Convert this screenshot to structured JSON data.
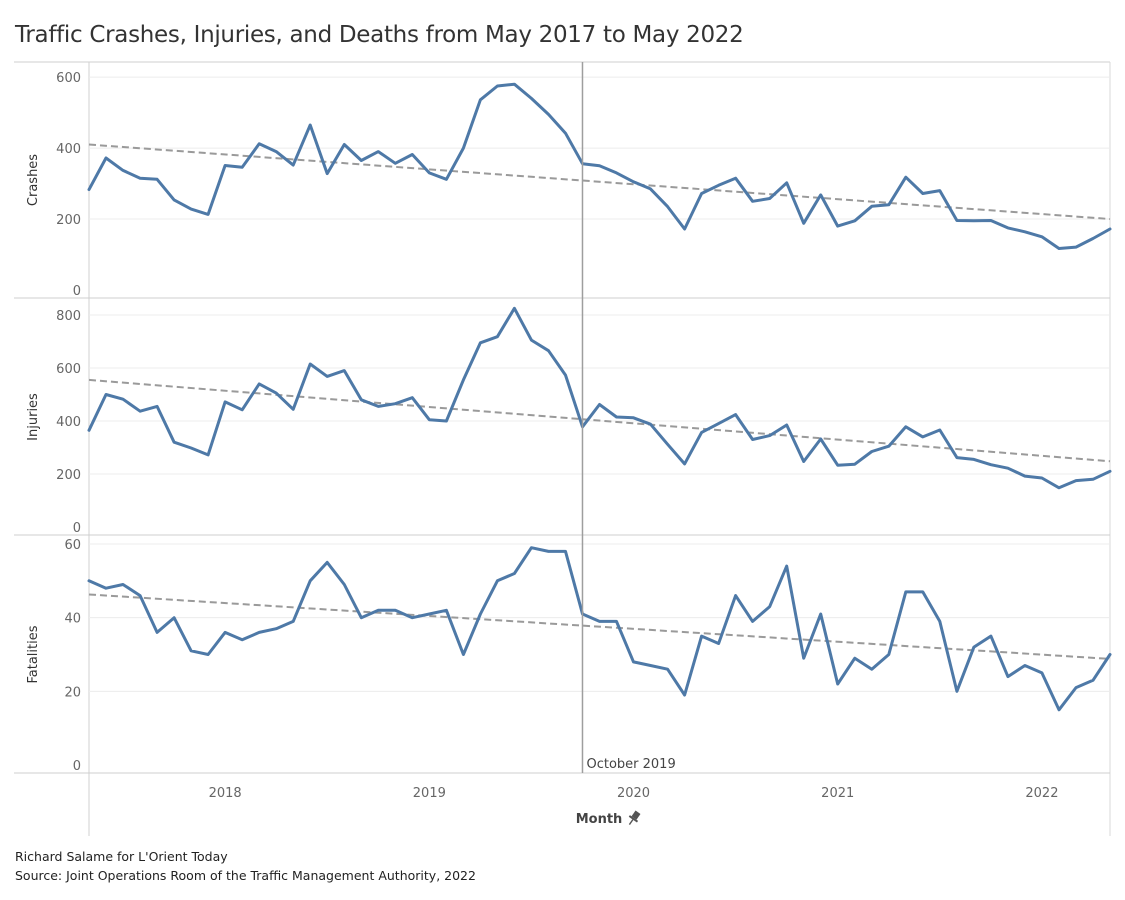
{
  "chart_data": {
    "type": "line",
    "title": "Traffic Crashes, Injuries, and Deaths from May 2017 to May 2022",
    "x_axis": {
      "label": "Month",
      "range": [
        "2017-05",
        "2022-05"
      ],
      "ticks": [
        "2018",
        "2019",
        "2020",
        "2021",
        "2022"
      ]
    },
    "annotation": {
      "date": "2019-10",
      "label": "October 2019"
    },
    "line_color": "#4e79a7",
    "trend_color": "#9a9a9a",
    "months": [
      "2017-05",
      "2017-06",
      "2017-07",
      "2017-08",
      "2017-09",
      "2017-10",
      "2017-11",
      "2017-12",
      "2018-01",
      "2018-02",
      "2018-03",
      "2018-04",
      "2018-05",
      "2018-06",
      "2018-07",
      "2018-08",
      "2018-09",
      "2018-10",
      "2018-11",
      "2018-12",
      "2019-01",
      "2019-02",
      "2019-03",
      "2019-04",
      "2019-05",
      "2019-06",
      "2019-07",
      "2019-08",
      "2019-09",
      "2019-10",
      "2019-11",
      "2019-12",
      "2020-01",
      "2020-02",
      "2020-03",
      "2020-04",
      "2020-05",
      "2020-06",
      "2020-07",
      "2020-08",
      "2020-09",
      "2020-10",
      "2020-11",
      "2020-12",
      "2021-01",
      "2021-02",
      "2021-03",
      "2021-04",
      "2021-05",
      "2021-06",
      "2021-07",
      "2021-08",
      "2021-09",
      "2021-10",
      "2021-11",
      "2021-12",
      "2022-01",
      "2022-02",
      "2022-03",
      "2022-04",
      "2022-05"
    ],
    "panels": [
      {
        "name": "Crashes",
        "ylim": [
          0,
          620
        ],
        "yticks": [
          0,
          200,
          400,
          600
        ],
        "values": [
          283,
          372,
          337,
          315,
          312,
          254,
          228,
          213,
          351,
          346,
          412,
          390,
          352,
          465,
          328,
          410,
          365,
          390,
          357,
          382,
          330,
          312,
          400,
          536,
          575,
          580,
          540,
          495,
          442,
          356,
          350,
          330,
          305,
          285,
          235,
          172,
          272,
          295,
          315,
          250,
          258,
          302,
          188,
          268,
          180,
          195,
          236,
          240,
          318,
          272,
          280,
          196,
          195,
          196,
          175,
          164,
          150,
          117,
          121,
          145,
          172
        ],
        "trend": [
          410,
          200
        ]
      },
      {
        "name": "Injuries",
        "ylim": [
          0,
          830
        ],
        "yticks": [
          0,
          200,
          400,
          600,
          800
        ],
        "values": [
          365,
          500,
          482,
          437,
          455,
          320,
          298,
          272,
          472,
          442,
          540,
          505,
          444,
          615,
          568,
          590,
          480,
          455,
          465,
          488,
          405,
          400,
          555,
          695,
          718,
          825,
          705,
          665,
          573,
          378,
          462,
          415,
          412,
          388,
          312,
          238,
          357,
          390,
          424,
          330,
          345,
          385,
          247,
          332,
          233,
          237,
          285,
          305,
          378,
          340,
          366,
          262,
          255,
          235,
          222,
          192,
          185,
          148,
          175,
          180,
          210
        ],
        "trend": [
          555,
          248
        ]
      },
      {
        "name": "Fatalities",
        "ylim": [
          0,
          60
        ],
        "yticks": [
          0,
          20,
          40,
          60
        ],
        "values": [
          50,
          48,
          49,
          46,
          36,
          40,
          31,
          30,
          36,
          34,
          36,
          37,
          39,
          50,
          55,
          49,
          40,
          42,
          42,
          40,
          41,
          42,
          30,
          41,
          50,
          52,
          59,
          58,
          58,
          41,
          39,
          39,
          28,
          27,
          26,
          19,
          35,
          33,
          46,
          39,
          43,
          54,
          29,
          41,
          22,
          29,
          26,
          30,
          47,
          47,
          39,
          20,
          32,
          35,
          24,
          27,
          25,
          15,
          21,
          23,
          30
        ],
        "trend": [
          46.3,
          28.8
        ]
      }
    ]
  },
  "credit": "Richard Salame for L'Orient Today",
  "source": "Source: Joint Operations Room of the Traffic Management Authority, 2022"
}
